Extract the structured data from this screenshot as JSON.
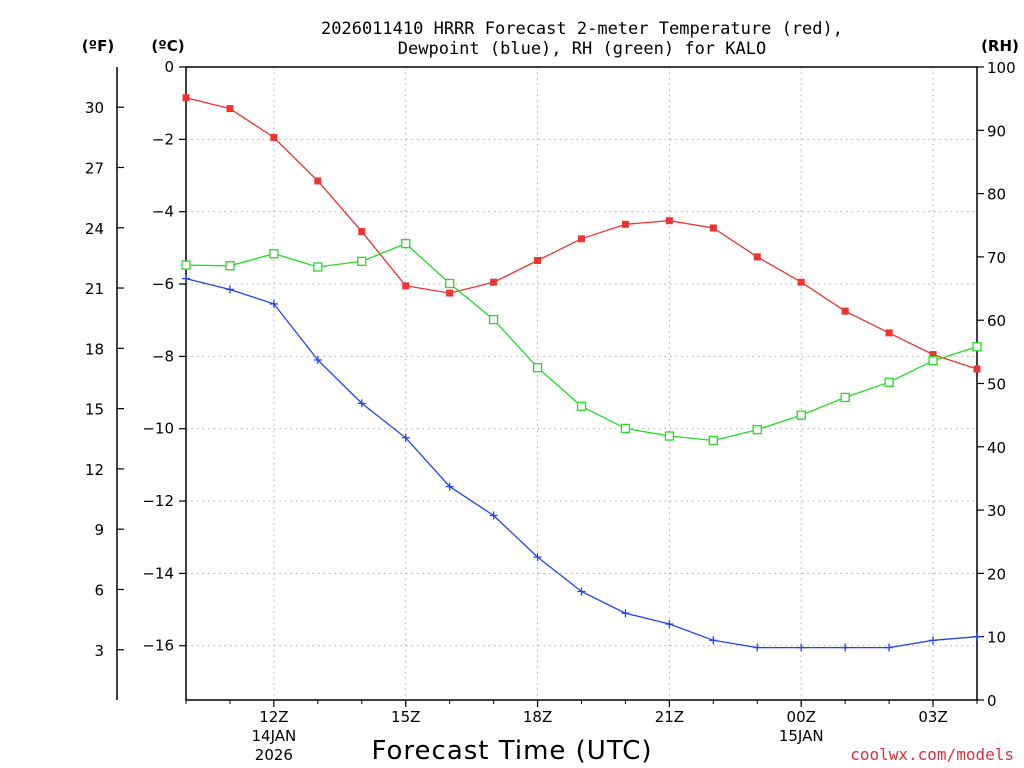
{
  "chart_data": {
    "type": "line",
    "title_line1": "2026011410 HRRR Forecast 2-meter Temperature (red),",
    "title_line2": "Dewpoint (blue), RH (green) for KALO",
    "unit_f": "(ºF)",
    "unit_c": "(ºC)",
    "unit_rh": "(RH)",
    "xlabel": "Forecast Time (UTC)",
    "credit": "coolwx.com/models",
    "x_hours": [
      10,
      11,
      12,
      13,
      14,
      15,
      16,
      17,
      18,
      19,
      20,
      21,
      22,
      23,
      24,
      25,
      26,
      27,
      28
    ],
    "x_range": [
      10,
      28
    ],
    "x_ticks": [
      {
        "hour": 12,
        "label": "12Z",
        "sub1": "14JAN",
        "sub2": "2026"
      },
      {
        "hour": 15,
        "label": "15Z",
        "sub1": "",
        "sub2": ""
      },
      {
        "hour": 18,
        "label": "18Z",
        "sub1": "",
        "sub2": ""
      },
      {
        "hour": 21,
        "label": "21Z",
        "sub1": "",
        "sub2": ""
      },
      {
        "hour": 24,
        "label": "00Z",
        "sub1": "15JAN",
        "sub2": ""
      },
      {
        "hour": 27,
        "label": "03Z",
        "sub1": "",
        "sub2": ""
      }
    ],
    "y_celsius_range": [
      -17.5,
      0
    ],
    "y_celsius_ticks": [
      "0",
      "−2",
      "−4",
      "−6",
      "−8",
      "−10",
      "−12",
      "−14",
      "−16"
    ],
    "y_celsius_values": [
      0,
      -2,
      -4,
      -6,
      -8,
      -10,
      -12,
      -14,
      -16
    ],
    "y_fahrenheit_ticks": [
      "30",
      "27",
      "24",
      "21",
      "18",
      "15",
      "12",
      "9",
      "6",
      "3"
    ],
    "y_fahrenheit_values": [
      30,
      27,
      24,
      21,
      18,
      15,
      12,
      9,
      6,
      3
    ],
    "y_rh_range": [
      0,
      100
    ],
    "y_rh_ticks": [
      "100",
      "90",
      "80",
      "70",
      "60",
      "50",
      "40",
      "30",
      "20",
      "10",
      "0"
    ],
    "y_rh_values": [
      100,
      90,
      80,
      70,
      60,
      50,
      40,
      30,
      20,
      10,
      0
    ],
    "series": [
      {
        "name": "Temperature",
        "axis": "celsius",
        "color": "#ee3333",
        "marker": "filled-square",
        "values": [
          -0.85,
          -1.15,
          -1.95,
          -3.15,
          -4.55,
          -6.05,
          -6.25,
          -5.95,
          -5.35,
          -4.75,
          -4.35,
          -4.25,
          -4.45,
          -5.25,
          -5.95,
          -6.75,
          -7.35,
          -7.95,
          -8.35
        ]
      },
      {
        "name": "Dewpoint",
        "axis": "celsius",
        "color": "#2244ee",
        "marker": "plus",
        "values": [
          -5.85,
          -6.15,
          -6.55,
          -8.1,
          -9.3,
          -10.25,
          -11.6,
          -12.4,
          -13.55,
          -14.5,
          -15.1,
          -15.4,
          -15.85,
          -16.05,
          -16.05,
          -16.05,
          -16.05,
          -15.85,
          -15.75
        ]
      },
      {
        "name": "RH",
        "axis": "rh",
        "color": "#22dd22",
        "marker": "open-square",
        "values": [
          68.7,
          68.6,
          70.5,
          68.4,
          69.3,
          72.1,
          65.8,
          60.1,
          52.5,
          46.4,
          42.9,
          41.7,
          41.0,
          42.7,
          45.0,
          47.8,
          50.2,
          53.6,
          55.8
        ]
      }
    ],
    "grid": true
  }
}
